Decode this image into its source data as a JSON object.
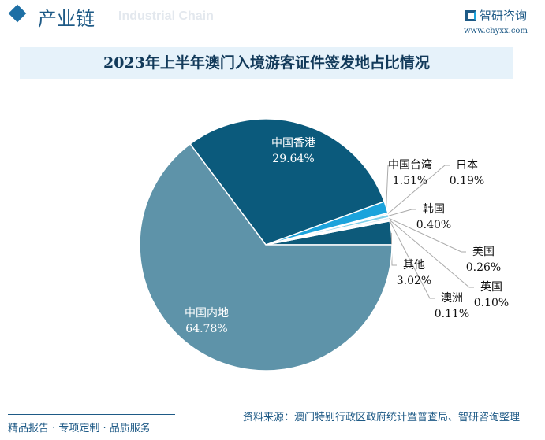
{
  "header": {
    "title": "产业链",
    "subtitle": "Industrial Chain",
    "logo_text": "智研咨询",
    "url": "www.chyxx.com"
  },
  "footer": {
    "tagline": "精品报告 · 专项定制 · 品质服务",
    "source": "资料来源：澳门特别行政区政府统计暨普查局、智研咨询整理"
  },
  "chart_data": {
    "type": "pie",
    "title": "2023年上半年澳门入境游客证件签发地占比情况",
    "slices": [
      {
        "label": "其他",
        "value": 3.02,
        "display": "3.02%",
        "color": "#0d5a7a"
      },
      {
        "label": "澳洲",
        "value": 0.11,
        "display": "0.11%",
        "color": "#c9dde6"
      },
      {
        "label": "英国",
        "value": 0.1,
        "display": "0.10%",
        "color": "#9fc3d3"
      },
      {
        "label": "美国",
        "value": 0.26,
        "display": "0.26%",
        "color": "#d9eaf1"
      },
      {
        "label": "韩国",
        "value": 0.4,
        "display": "0.40%",
        "color": "#7fd0ea"
      },
      {
        "label": "日本",
        "value": 0.19,
        "display": "0.19%",
        "color": "#b5dbe8"
      },
      {
        "label": "中国台湾",
        "value": 1.51,
        "display": "1.51%",
        "color": "#1ba3dc"
      },
      {
        "label": "中国香港",
        "value": 29.64,
        "display": "29.64%",
        "color": "#0b5a7c"
      },
      {
        "label": "中国内地",
        "value": 64.78,
        "display": "64.78%",
        "color": "#5e93a9"
      }
    ],
    "start": "3 o'clock",
    "direction": "counterclockwise",
    "legend": "none"
  }
}
